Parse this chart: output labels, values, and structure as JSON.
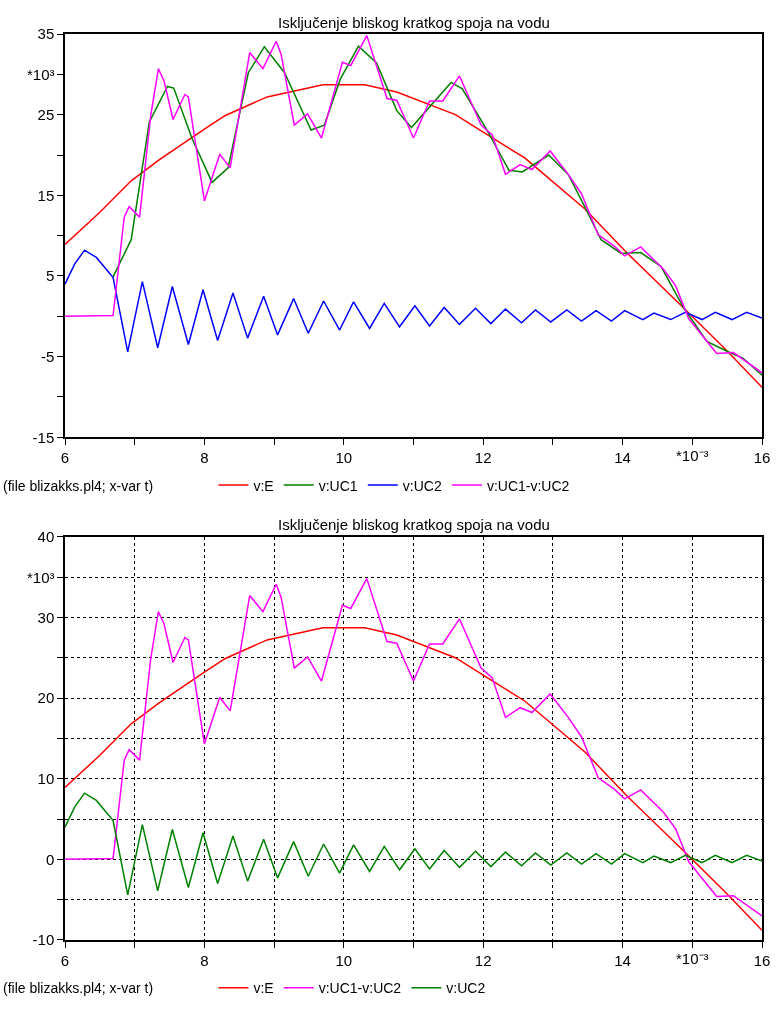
{
  "chart_data": [
    {
      "type": "line",
      "title": "Isključenje bliskog kratkog spoja na vodu",
      "annotations": [
        "(file blizakks.pl4; x-var t)"
      ],
      "xlim": [
        6,
        16
      ],
      "ylim": [
        -15,
        35
      ],
      "xlabel": "*10⁻³",
      "ylabel": "*10³",
      "xticks": [
        6,
        {
          "value": 7,
          "label": null
        },
        8,
        {
          "value": 9,
          "label": null
        },
        10,
        {
          "value": 11,
          "label": null
        },
        12,
        {
          "value": 13,
          "label": null
        },
        14,
        {
          "value": 15,
          "label": null
        },
        16
      ],
      "yticks": [
        {
          "value": -15,
          "label": "-15"
        },
        {
          "value": -10,
          "label": null
        },
        {
          "value": -5,
          "label": "-5"
        },
        {
          "value": 0,
          "label": null
        },
        5,
        {
          "value": 10,
          "label": null
        },
        15,
        {
          "value": 20,
          "label": null
        },
        25,
        {
          "value": 30,
          "label": null
        },
        35
      ],
      "grid": false,
      "legend": "bottom",
      "series": [
        {
          "name": "v:E",
          "color": "#ff0000",
          "x": [
            6.0,
            6.5,
            6.95,
            7.35,
            8.0,
            8.3,
            8.9,
            9.7,
            10.3,
            10.76,
            11.6,
            12.6,
            13.46,
            14.07,
            14.88,
            15.5,
            16.0
          ],
          "values": [
            8.9,
            12.9,
            16.8,
            19.4,
            23.2,
            24.9,
            27.2,
            28.7,
            28.7,
            27.8,
            25.0,
            19.6,
            13.3,
            7.8,
            1.0,
            -4.3,
            -8.8
          ]
        },
        {
          "name": "v:UC1",
          "color": "#008000",
          "x": [
            6.69,
            6.95,
            7.21,
            7.47,
            7.56,
            7.82,
            8.11,
            8.34,
            8.63,
            8.86,
            9.15,
            9.53,
            9.72,
            9.95,
            10.21,
            10.47,
            10.76,
            10.97,
            11.54,
            11.7,
            12.04,
            12.37,
            12.56,
            12.94,
            13.22,
            13.48,
            13.69,
            13.98,
            14.26,
            14.55,
            14.88,
            15.21,
            15.49,
            15.73,
            16.0
          ],
          "values": [
            4.9,
            9.5,
            24.1,
            28.5,
            28.3,
            22.1,
            16.6,
            18.4,
            30.2,
            33.4,
            30.2,
            23.1,
            23.7,
            29.4,
            33.5,
            31.4,
            25.5,
            23.4,
            29.0,
            28.2,
            23.3,
            18.1,
            17.9,
            20.0,
            17.6,
            13.2,
            9.5,
            7.8,
            7.9,
            6.2,
            1.0,
            -3.1,
            -4.3,
            -5.2,
            -7.3
          ]
        },
        {
          "name": "v:UC2",
          "color": "#0000ff",
          "x": [
            6.0,
            6.14,
            6.28,
            6.45,
            6.69,
            6.9,
            7.11,
            7.33,
            7.54,
            7.77,
            7.98,
            8.19,
            8.41,
            8.62,
            8.85,
            9.05,
            9.28,
            9.49,
            9.71,
            9.94,
            10.14,
            10.37,
            10.58,
            10.8,
            11.02,
            11.23,
            11.44,
            11.66,
            11.89,
            12.11,
            12.32,
            12.55,
            12.75,
            12.97,
            13.2,
            13.41,
            13.62,
            13.84,
            14.03,
            14.29,
            14.45,
            14.69,
            14.9,
            15.14,
            15.33,
            15.57,
            15.78,
            16.0
          ],
          "values": [
            4.0,
            6.5,
            8.2,
            7.3,
            4.8,
            -4.4,
            4.3,
            -3.9,
            3.7,
            -3.5,
            3.3,
            -3.0,
            2.9,
            -2.7,
            2.5,
            -2.3,
            2.2,
            -2.1,
            1.9,
            -1.7,
            1.8,
            -1.5,
            1.6,
            -1.3,
            1.3,
            -1.2,
            1.1,
            -1.0,
            1.0,
            -0.9,
            0.9,
            -0.8,
            0.8,
            -0.7,
            0.8,
            -0.6,
            0.7,
            -0.6,
            0.7,
            -0.4,
            0.4,
            -0.4,
            0.5,
            -0.4,
            0.5,
            -0.4,
            0.5,
            -0.2
          ]
        },
        {
          "name": "v:UC1-v:UC2",
          "color": "#ff00ff",
          "x": [
            6.0,
            6.69,
            6.85,
            6.92,
            7.07,
            7.23,
            7.34,
            7.42,
            7.55,
            7.72,
            7.77,
            8.0,
            8.22,
            8.37,
            8.65,
            8.84,
            9.03,
            9.1,
            9.29,
            9.48,
            9.68,
            9.98,
            10.1,
            10.33,
            10.62,
            10.76,
            11.0,
            11.23,
            11.42,
            11.66,
            11.97,
            12.13,
            12.32,
            12.53,
            12.7,
            12.96,
            13.22,
            13.41,
            13.65,
            13.88,
            14.03,
            14.26,
            14.59,
            14.76,
            14.95,
            15.35,
            15.59,
            16.0
          ],
          "values": [
            0.0,
            0.1,
            12.3,
            13.6,
            12.3,
            24.9,
            30.7,
            29.2,
            24.4,
            27.5,
            27.2,
            14.3,
            20.1,
            18.4,
            32.7,
            30.7,
            34.1,
            32.5,
            23.7,
            25.1,
            22.1,
            31.5,
            31.1,
            34.8,
            27.0,
            26.8,
            22.1,
            26.7,
            26.7,
            29.8,
            23.7,
            22.5,
            17.6,
            18.8,
            18.2,
            20.5,
            17.6,
            15.2,
            10.1,
            8.7,
            7.5,
            8.6,
            5.8,
            3.8,
            -0.3,
            -4.6,
            -4.5,
            -7.0
          ]
        }
      ]
    },
    {
      "type": "line",
      "title": "Isključenje bliskog kratkog spoja na vodu",
      "annotations": [
        "(file blizakks.pl4; x-var t)"
      ],
      "xlim": [
        6,
        16
      ],
      "ylim": [
        -10,
        40
      ],
      "xlabel": "*10⁻³",
      "ylabel": "*10³",
      "xticks": [
        6,
        {
          "value": 7,
          "label": null
        },
        8,
        {
          "value": 9,
          "label": null
        },
        10,
        {
          "value": 11,
          "label": null
        },
        12,
        {
          "value": 13,
          "label": null
        },
        14,
        {
          "value": 15,
          "label": null
        },
        16
      ],
      "yticks": [
        {
          "value": -10,
          "label": "-10"
        },
        {
          "value": -5,
          "label": null
        },
        0,
        {
          "value": 5,
          "label": null
        },
        10,
        {
          "value": 15,
          "label": null
        },
        20,
        {
          "value": 25,
          "label": null
        },
        30,
        {
          "value": 35,
          "label": null
        },
        40
      ],
      "grid": true,
      "legend": "bottom",
      "series": [
        {
          "name": "v:E",
          "color": "#ff0000",
          "x": [
            6.0,
            6.5,
            6.95,
            7.35,
            8.0,
            8.3,
            8.9,
            9.7,
            10.3,
            10.76,
            11.6,
            12.6,
            13.46,
            14.07,
            14.88,
            15.5,
            16.0
          ],
          "values": [
            8.9,
            12.9,
            16.8,
            19.4,
            23.2,
            24.9,
            27.2,
            28.7,
            28.7,
            27.8,
            25.0,
            19.6,
            13.3,
            7.8,
            1.0,
            -4.3,
            -8.8
          ]
        },
        {
          "name": "v:UC1-v:UC2",
          "color": "#ff00ff",
          "x": [
            6.0,
            6.69,
            6.85,
            6.92,
            7.07,
            7.23,
            7.34,
            7.42,
            7.55,
            7.72,
            7.77,
            8.0,
            8.22,
            8.37,
            8.65,
            8.84,
            9.03,
            9.1,
            9.29,
            9.48,
            9.68,
            9.98,
            10.1,
            10.33,
            10.62,
            10.76,
            11.0,
            11.23,
            11.42,
            11.66,
            11.97,
            12.13,
            12.32,
            12.53,
            12.7,
            12.96,
            13.22,
            13.41,
            13.65,
            13.88,
            14.03,
            14.26,
            14.59,
            14.76,
            14.95,
            15.35,
            15.59,
            16.0
          ],
          "values": [
            0.0,
            0.1,
            12.3,
            13.6,
            12.3,
            24.9,
            30.7,
            29.2,
            24.4,
            27.5,
            27.2,
            14.3,
            20.1,
            18.4,
            32.7,
            30.7,
            34.1,
            32.5,
            23.7,
            25.1,
            22.1,
            31.5,
            31.1,
            34.8,
            27.0,
            26.8,
            22.1,
            26.7,
            26.7,
            29.8,
            23.7,
            22.5,
            17.6,
            18.8,
            18.2,
            20.5,
            17.6,
            15.2,
            10.1,
            8.7,
            7.5,
            8.6,
            5.8,
            3.8,
            -0.3,
            -4.6,
            -4.5,
            -7.0
          ]
        },
        {
          "name": "v:UC2",
          "color": "#008000",
          "x": [
            6.0,
            6.14,
            6.28,
            6.45,
            6.69,
            6.9,
            7.11,
            7.33,
            7.54,
            7.77,
            7.98,
            8.19,
            8.41,
            8.62,
            8.85,
            9.05,
            9.28,
            9.49,
            9.71,
            9.94,
            10.14,
            10.37,
            10.58,
            10.8,
            11.02,
            11.23,
            11.44,
            11.66,
            11.89,
            12.11,
            12.32,
            12.55,
            12.75,
            12.97,
            13.2,
            13.41,
            13.62,
            13.84,
            14.03,
            14.29,
            14.45,
            14.69,
            14.9,
            15.14,
            15.33,
            15.57,
            15.78,
            16.0
          ],
          "values": [
            4.0,
            6.5,
            8.2,
            7.3,
            4.8,
            -4.4,
            4.3,
            -3.9,
            3.7,
            -3.5,
            3.3,
            -3.0,
            2.9,
            -2.7,
            2.5,
            -2.3,
            2.2,
            -2.1,
            1.9,
            -1.7,
            1.8,
            -1.5,
            1.6,
            -1.3,
            1.3,
            -1.2,
            1.1,
            -1.0,
            1.0,
            -0.9,
            0.9,
            -0.8,
            0.8,
            -0.7,
            0.8,
            -0.6,
            0.7,
            -0.6,
            0.7,
            -0.4,
            0.4,
            -0.4,
            0.5,
            -0.4,
            0.5,
            -0.4,
            0.5,
            -0.2
          ]
        }
      ]
    }
  ]
}
